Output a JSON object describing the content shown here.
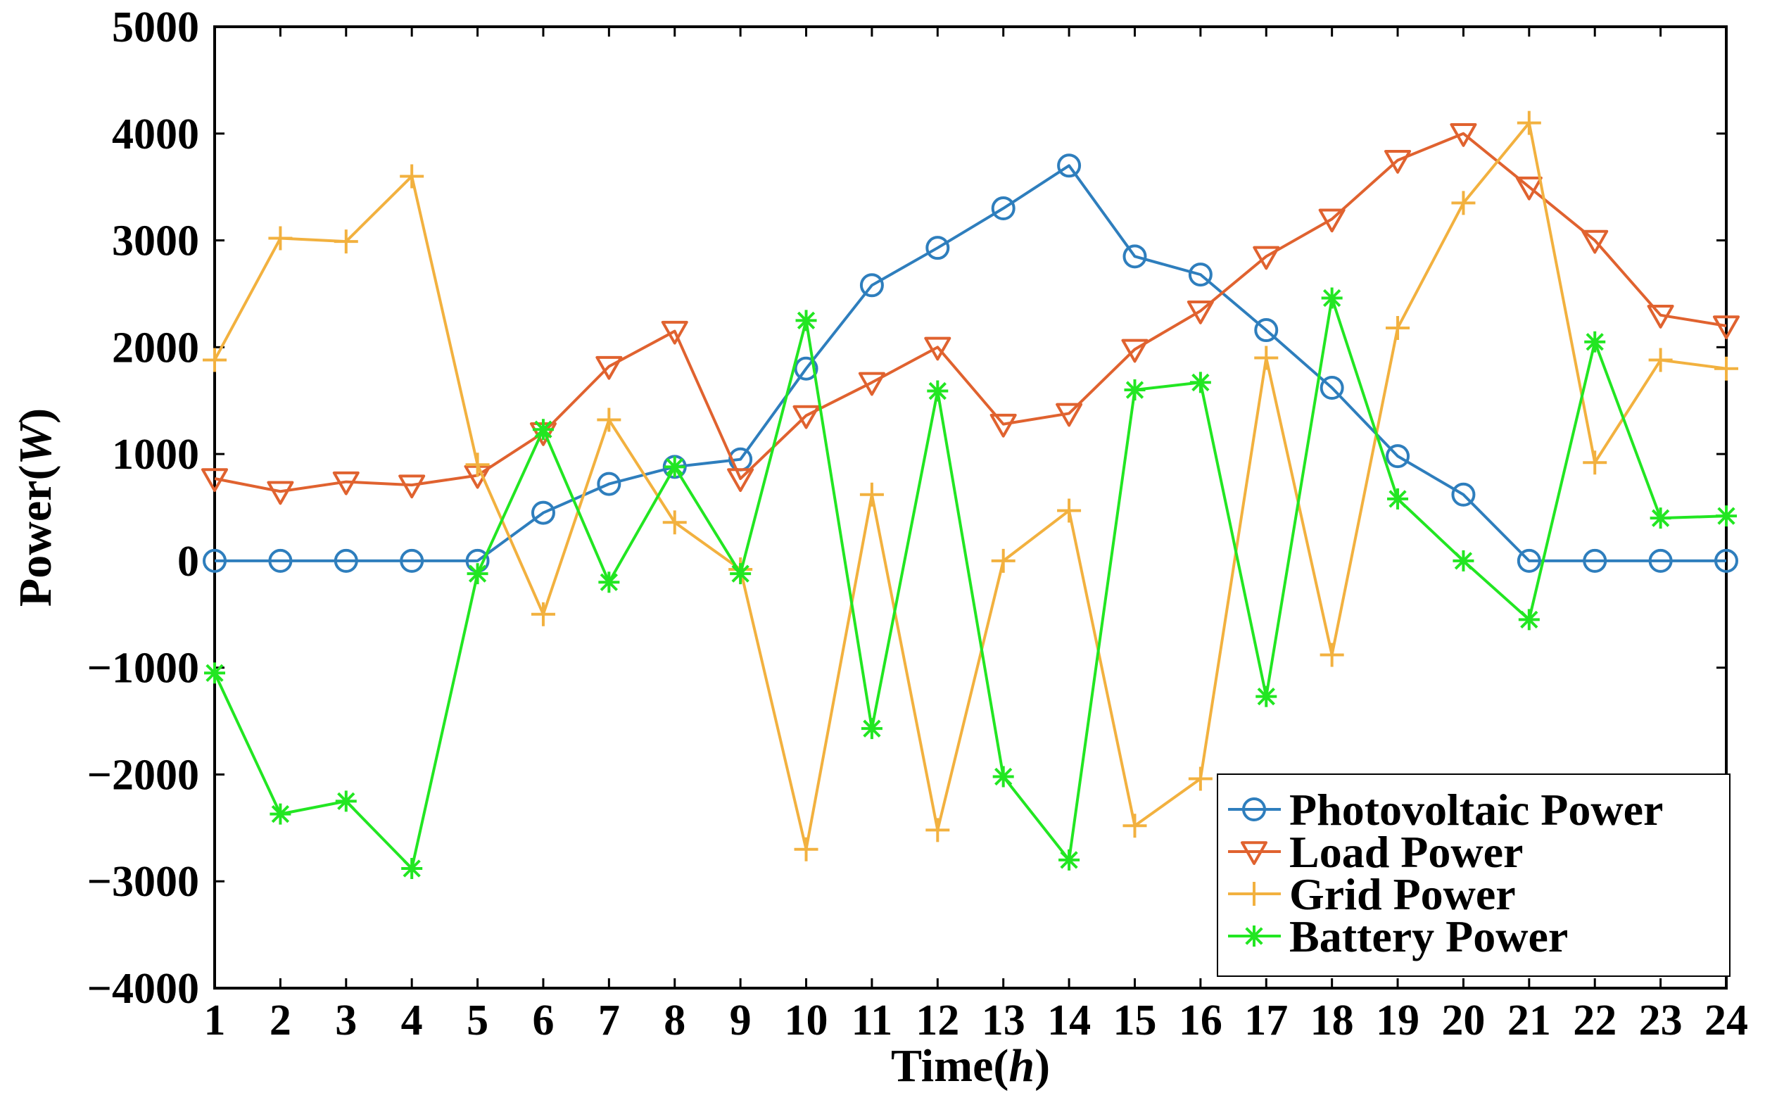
{
  "chart_data": {
    "type": "line",
    "x": [
      1,
      2,
      3,
      4,
      5,
      6,
      7,
      8,
      9,
      10,
      11,
      12,
      13,
      14,
      15,
      16,
      17,
      18,
      19,
      20,
      21,
      22,
      23,
      24
    ],
    "xlabel": {
      "prefix": "Time(",
      "var": "h",
      "suffix": ")"
    },
    "ylabel": {
      "prefix": "Power(",
      "var": "W",
      "suffix": ")"
    },
    "xlim": [
      1,
      24
    ],
    "ylim": [
      -4000,
      5000
    ],
    "yticks": [
      -4000,
      -3000,
      -2000,
      -1000,
      0,
      1000,
      2000,
      3000,
      4000,
      5000
    ],
    "ytick_labels": [
      "−4000",
      "−3000",
      "−2000",
      "−1000",
      "0",
      "1000",
      "2000",
      "3000",
      "4000",
      "5000"
    ],
    "grid": false,
    "legend_position": "bottom-right",
    "series": [
      {
        "name": "Photovoltaic Power",
        "color": "#2e7ebd",
        "marker": "circle",
        "values": [
          0,
          0,
          0,
          0,
          0,
          450,
          720,
          880,
          950,
          1800,
          2580,
          2930,
          3300,
          3700,
          2850,
          2680,
          2160,
          1620,
          980,
          620,
          0,
          0,
          0,
          0
        ]
      },
      {
        "name": "Load Power",
        "color": "#e0622f",
        "marker": "triangle-down",
        "values": [
          770,
          650,
          740,
          710,
          800,
          1200,
          1820,
          2150,
          770,
          1360,
          1670,
          2000,
          1280,
          1380,
          1980,
          2340,
          2850,
          3200,
          3750,
          4000,
          3500,
          3000,
          2300,
          2200
        ]
      },
      {
        "name": "Grid Power",
        "color": "#f2b13f",
        "marker": "plus",
        "values": [
          1880,
          3020,
          2990,
          3600,
          900,
          -500,
          1320,
          360,
          -80,
          -2700,
          620,
          -2520,
          0,
          470,
          -2480,
          -2040,
          1900,
          -880,
          2180,
          3350,
          4100,
          920,
          1880,
          1800
        ]
      },
      {
        "name": "Battery Power",
        "color": "#22e622",
        "marker": "asterisk",
        "values": [
          -1050,
          -2370,
          -2250,
          -2880,
          -120,
          1230,
          -200,
          880,
          -120,
          2250,
          -1570,
          1590,
          -2020,
          -2800,
          1600,
          1670,
          -1270,
          2460,
          580,
          0,
          -550,
          2050,
          400,
          420
        ]
      }
    ]
  }
}
